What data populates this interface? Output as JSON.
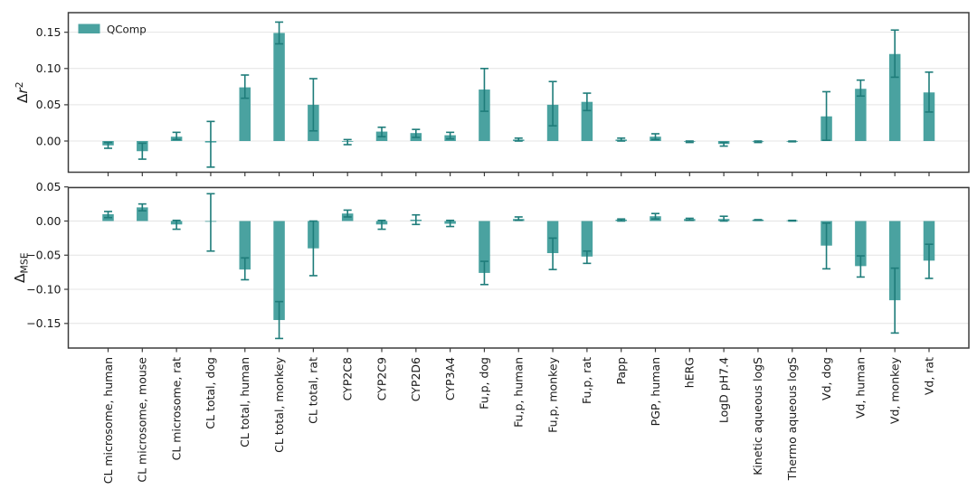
{
  "figure": {
    "background": "#ffffff"
  },
  "colors": {
    "bar_fill": "#4aa2a0",
    "error_bar": "#1e7c7a",
    "grid_line": "#e4e4e4",
    "spine": "#3c3c3c",
    "tick": "#3c3c3c",
    "text": "#1a1a1a"
  },
  "legend": {
    "label": "QComp",
    "position": "upper left"
  },
  "chart_data": {
    "type": "bar",
    "orientation": "vertical",
    "grid": true,
    "legend_entries": [
      "QComp"
    ],
    "categories": [
      "CL microsome, human",
      "CL microsome, mouse",
      "CL microsome, rat",
      "CL total, dog",
      "CL total, human",
      "CL total, monkey",
      "CL total, rat",
      "CYP2C8",
      "CYP2C9",
      "CYP2D6",
      "CYP3A4",
      "Fu,p, dog",
      "Fu,p, human",
      "Fu,p, monkey",
      "Fu,p, rat",
      "Papp",
      "PGP, human",
      "hERG",
      "LogD pH7.4",
      "Kinetic aqueous logS",
      "Thermo aqueous logS",
      "Vd, dog",
      "Vd, human",
      "Vd, monkey",
      "Vd, rat"
    ],
    "subplots": [
      {
        "name": "delta-r2",
        "ylabel_segments": [
          {
            "text": "Δ"
          },
          {
            "text": "r",
            "italic": true
          },
          {
            "text": "2",
            "script": "sup"
          }
        ],
        "ylim": [
          -0.043,
          0.177
        ],
        "yticks": [
          {
            "v": 0.0,
            "label": "0.00"
          },
          {
            "v": 0.05,
            "label": "0.05"
          },
          {
            "v": 0.1,
            "label": "0.10"
          },
          {
            "v": 0.15,
            "label": "0.15"
          }
        ],
        "series": [
          {
            "name": "QComp",
            "values": [
              -0.006,
              -0.014,
              0.006,
              -0.002,
              0.074,
              0.149,
              0.05,
              -0.001,
              0.013,
              0.011,
              0.008,
              0.071,
              0.002,
              0.05,
              0.054,
              0.002,
              0.006,
              -0.001,
              -0.004,
              -0.001,
              -0.001,
              0.034,
              0.072,
              0.12,
              0.067
            ],
            "err_lo": [
              -0.01,
              -0.025,
              0.002,
              -0.036,
              0.059,
              0.134,
              0.014,
              -0.005,
              0.006,
              0.005,
              0.003,
              0.041,
              0.0,
              0.021,
              0.042,
              0.0,
              0.002,
              -0.002,
              -0.007,
              -0.002,
              -0.001,
              0.001,
              0.062,
              0.088,
              0.04
            ],
            "err_hi": [
              -0.002,
              -0.003,
              0.012,
              0.027,
              0.091,
              0.164,
              0.086,
              0.002,
              0.019,
              0.016,
              0.012,
              0.1,
              0.004,
              0.082,
              0.066,
              0.004,
              0.01,
              0.0,
              -0.002,
              0.0,
              0.0,
              0.068,
              0.084,
              0.153,
              0.095
            ]
          }
        ]
      },
      {
        "name": "delta-mse",
        "ylabel_segments": [
          {
            "text": "Δ"
          },
          {
            "text": "MSE",
            "script": "sub"
          }
        ],
        "ylim": [
          -0.186,
          0.049
        ],
        "yticks": [
          {
            "v": 0.05,
            "label": "0.05"
          },
          {
            "v": 0.0,
            "label": "0.00"
          },
          {
            "v": -0.05,
            "label": "−0.05"
          },
          {
            "v": -0.1,
            "label": "−0.10"
          },
          {
            "v": -0.15,
            "label": "−0.15"
          }
        ],
        "series": [
          {
            "name": "QComp",
            "values": [
              0.01,
              0.02,
              -0.005,
              -0.001,
              -0.071,
              -0.145,
              -0.04,
              0.011,
              -0.005,
              0.002,
              -0.004,
              -0.076,
              0.003,
              -0.047,
              -0.052,
              0.002,
              0.007,
              0.003,
              0.003,
              0.002,
              0.001,
              -0.036,
              -0.066,
              -0.116,
              -0.058
            ],
            "err_lo": [
              0.005,
              0.015,
              -0.012,
              -0.044,
              -0.086,
              -0.172,
              -0.08,
              0.006,
              -0.012,
              -0.005,
              -0.008,
              -0.093,
              0.001,
              -0.071,
              -0.062,
              0.0,
              0.003,
              0.001,
              0.0,
              0.001,
              0.0,
              -0.07,
              -0.082,
              -0.164,
              -0.084
            ],
            "err_hi": [
              0.014,
              0.025,
              0.001,
              0.04,
              -0.054,
              -0.118,
              0.0,
              0.016,
              0.001,
              0.009,
              0.001,
              -0.059,
              0.006,
              -0.025,
              -0.044,
              0.003,
              0.011,
              0.004,
              0.007,
              0.002,
              0.001,
              -0.003,
              -0.051,
              -0.069,
              -0.034
            ]
          }
        ]
      }
    ]
  }
}
